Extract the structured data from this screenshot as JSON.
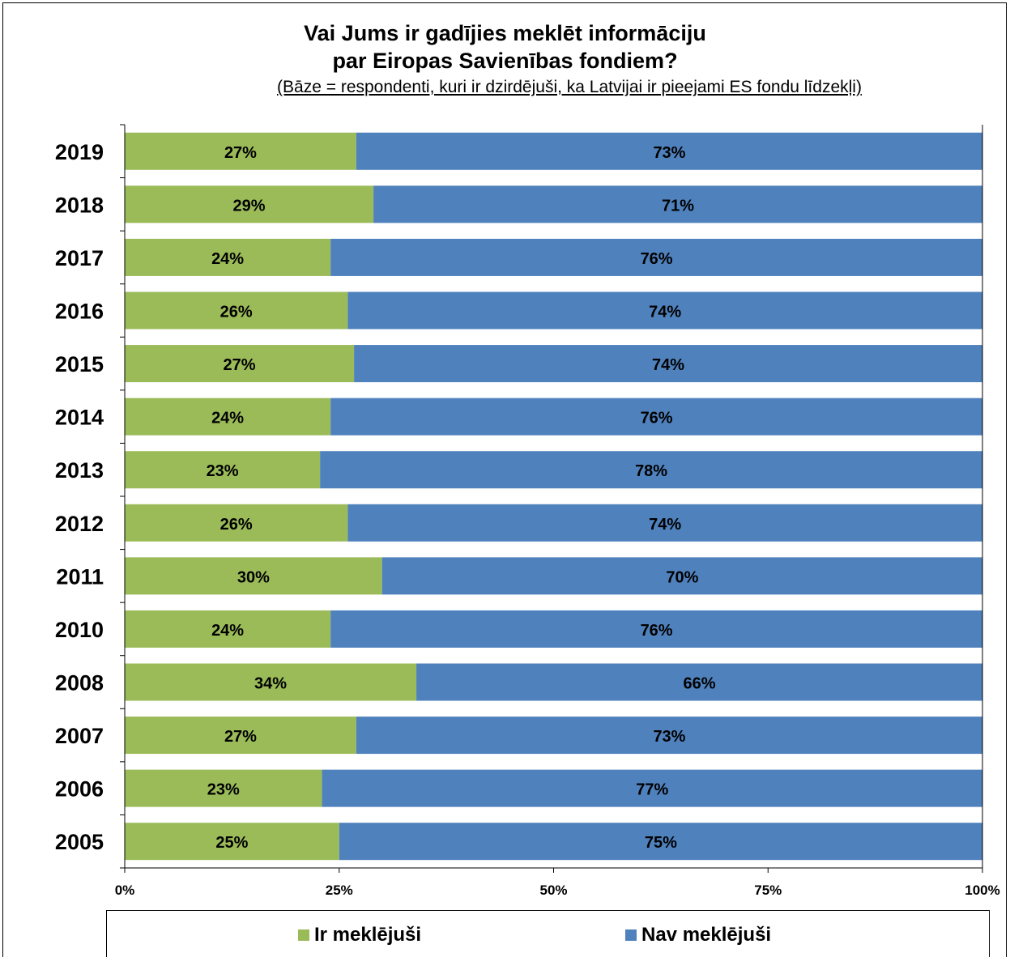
{
  "chart_data": {
    "type": "bar",
    "orientation": "horizontal",
    "stacked": "percent",
    "title_line1": "Vai Jums ir gadījies meklēt informāciju",
    "title_line2": "par Eiropas Savienības fondiem?",
    "subtitle": "(Bāze = respondenti, kuri ir dzirdējuši, ka Latvijai ir pieejami ES fondu līdzekļi)",
    "categories": [
      "2019",
      "2018",
      "2017",
      "2016",
      "2015",
      "2014",
      "2013",
      "2012",
      "2011",
      "2010",
      "2008",
      "2007",
      "2006",
      "2005"
    ],
    "series": [
      {
        "name": "Ir meklējuši",
        "color": "#9BBB59",
        "values": [
          27,
          29,
          24,
          26,
          27,
          24,
          23,
          26,
          30,
          24,
          34,
          27,
          23,
          25
        ],
        "labels": [
          "27%",
          "29%",
          "24%",
          "26%",
          "27%",
          "24%",
          "23%",
          "26%",
          "30%",
          "24%",
          "34%",
          "27%",
          "23%",
          "25%"
        ]
      },
      {
        "name": "Nav meklējuši",
        "color": "#4F81BD",
        "values": [
          73,
          71,
          76,
          74,
          74,
          76,
          78,
          74,
          70,
          76,
          66,
          73,
          77,
          75
        ],
        "labels": [
          "73%",
          "71%",
          "76%",
          "74%",
          "74%",
          "76%",
          "78%",
          "74%",
          "70%",
          "76%",
          "66%",
          "73%",
          "77%",
          "75%"
        ]
      }
    ],
    "xlim": [
      0,
      100
    ],
    "xticks": [
      0,
      25,
      50,
      75,
      100
    ],
    "xtick_labels": [
      "0%",
      "25%",
      "50%",
      "75%",
      "100%"
    ],
    "grid": false,
    "legend_position": "bottom"
  }
}
